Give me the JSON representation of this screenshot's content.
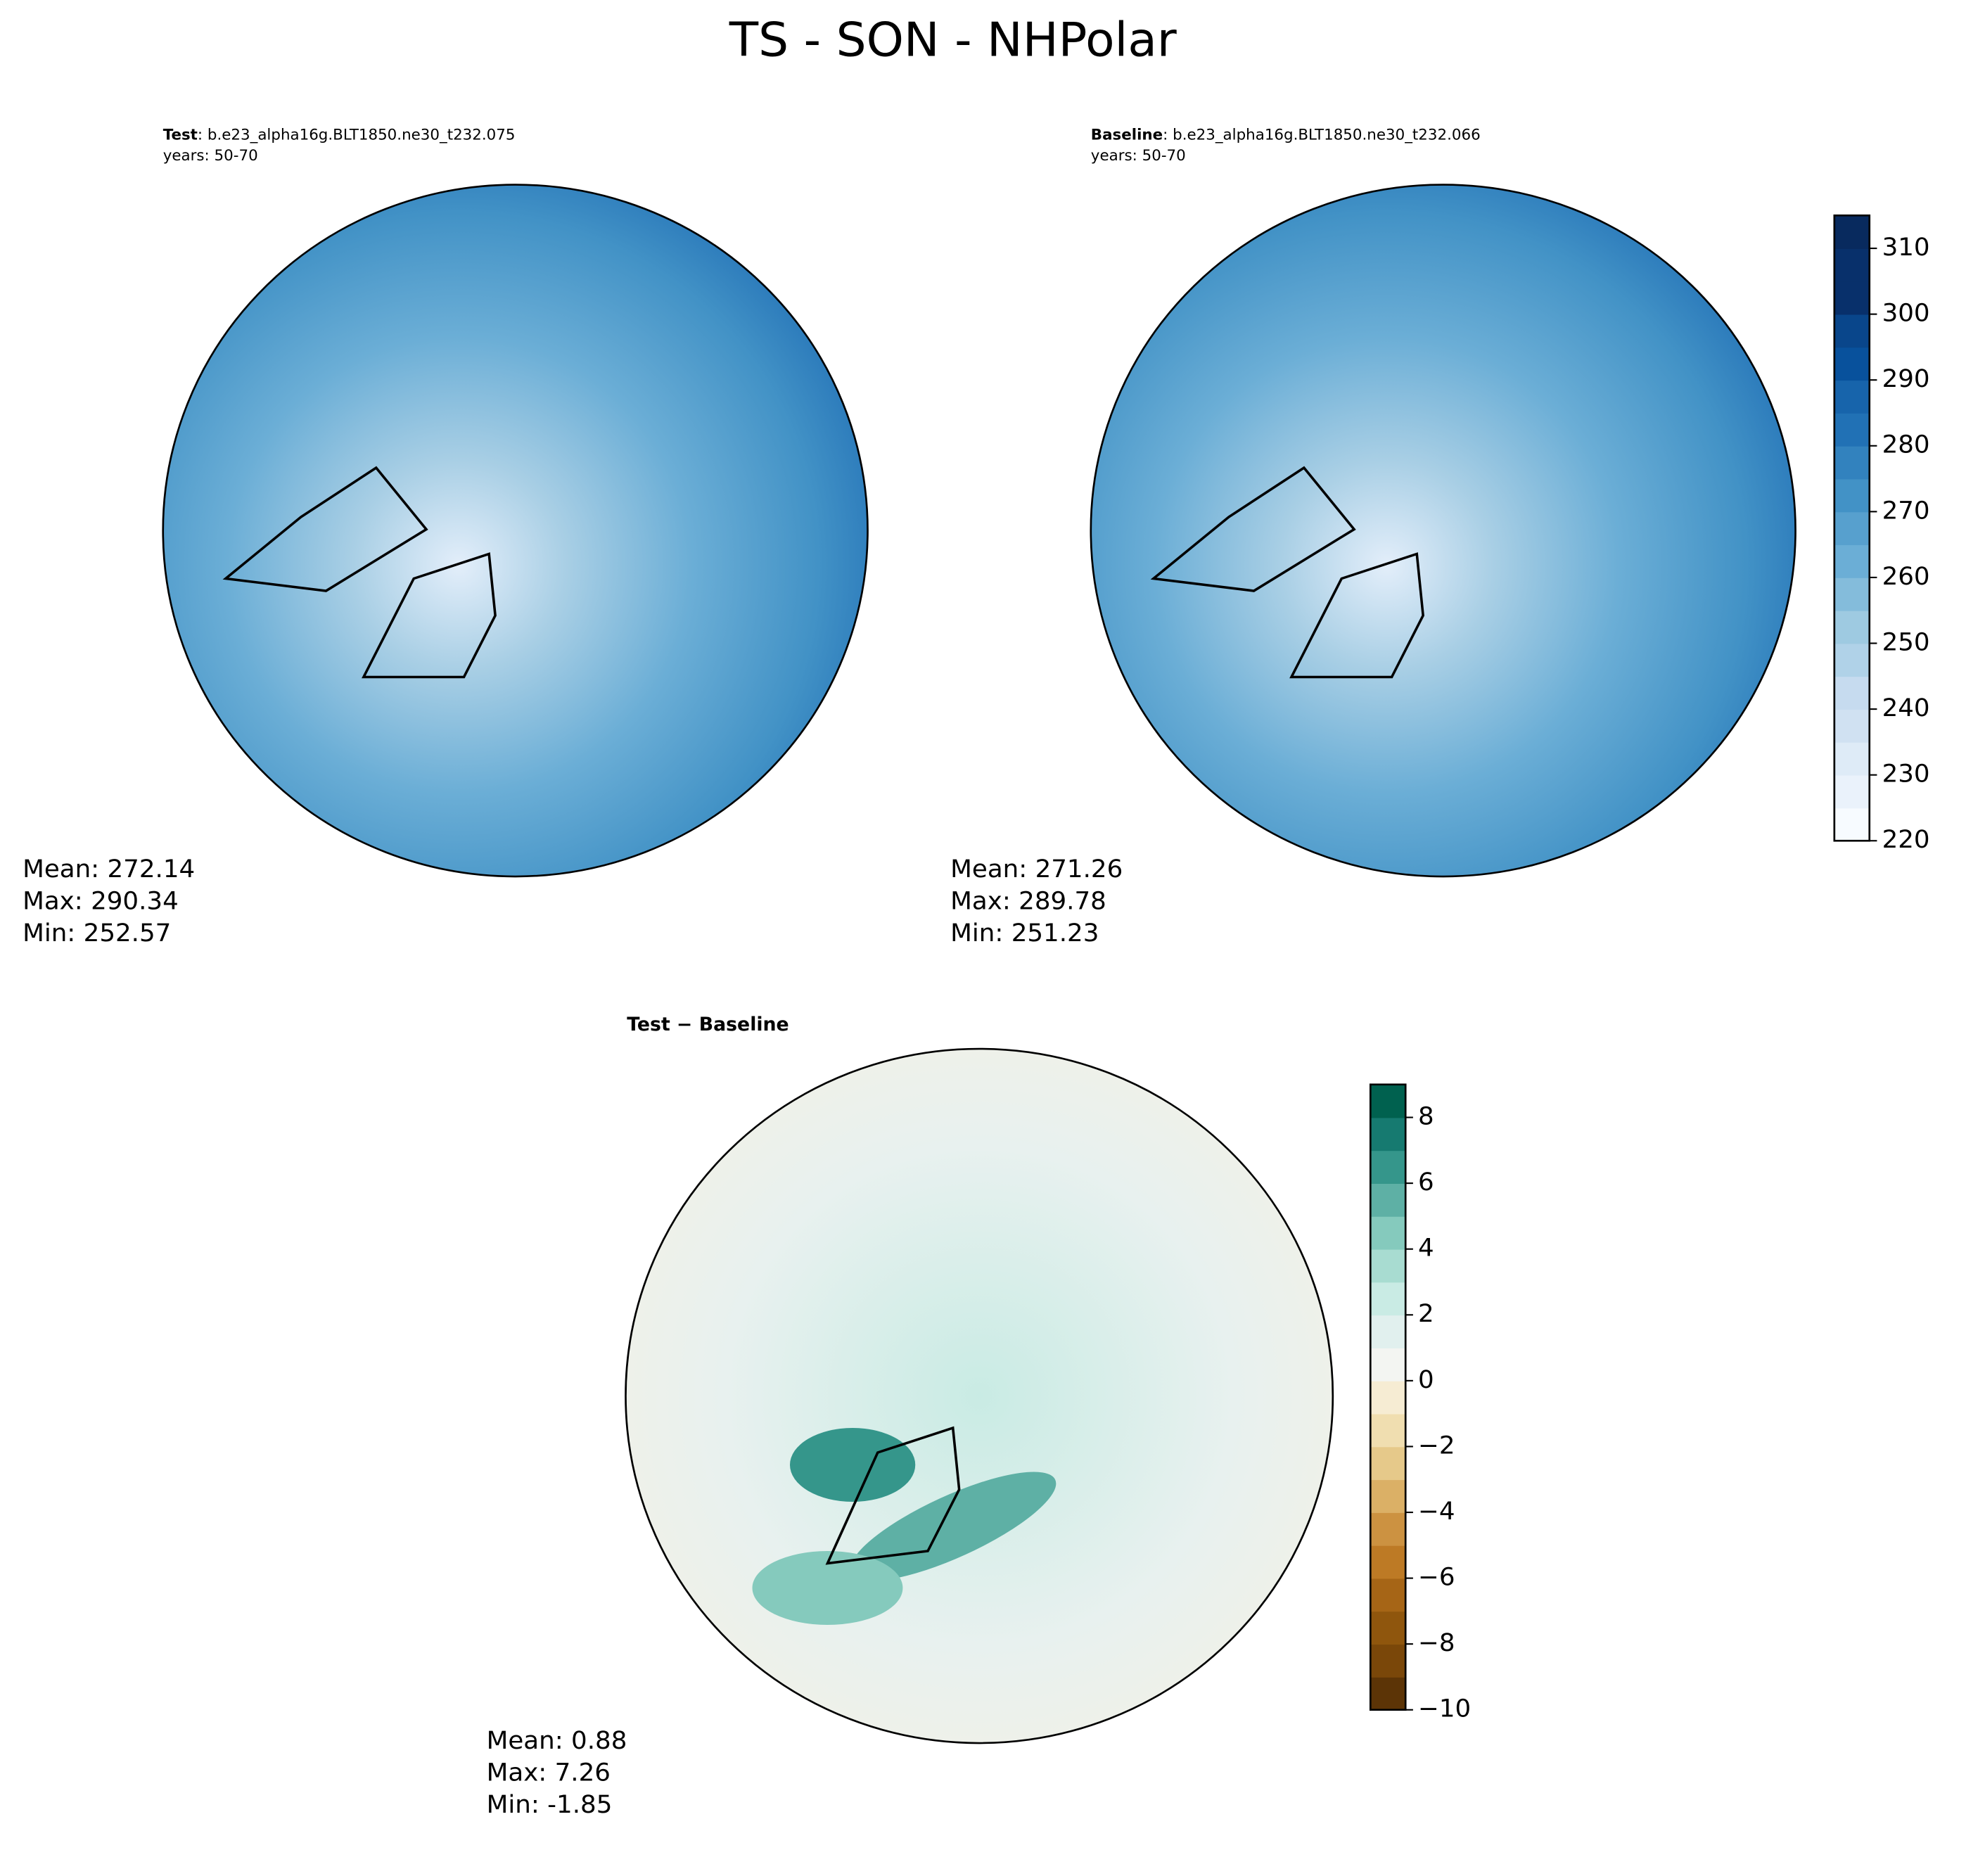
{
  "chart_data": [
    {
      "type": "map",
      "title": "TS - SON - NHPolar",
      "panel_label": "Test",
      "case": ": b.e23_alpha16g.BLT1850.ne30_t232.075",
      "years": "years: 50-70",
      "stats": [
        "Mean: 272.14",
        "Max: 290.34",
        "Min: 252.57"
      ]
    },
    {
      "type": "map",
      "panel_label": "Baseline",
      "case": ": b.e23_alpha16g.BLT1850.ne30_t232.066",
      "years": "years: 50-70",
      "stats": [
        "Mean: 271.26",
        "Max: 289.78",
        "Min: 251.23"
      ],
      "colorbar": {
        "ylim": [
          220,
          315
        ],
        "yticks": [
          220,
          230,
          240,
          250,
          260,
          270,
          280,
          290,
          300,
          310
        ],
        "colors": [
          "#f7fbff",
          "#eaf2fb",
          "#deebf7",
          "#d0e1f2",
          "#c6dbef",
          "#b0d2e8",
          "#9ecae1",
          "#84bcdb",
          "#6baed6",
          "#57a0ce",
          "#4292c6",
          "#3282be",
          "#2171b5",
          "#1764ab",
          "#08519c",
          "#09468b",
          "#08306b",
          "#08306b",
          "#082a5e"
        ]
      }
    },
    {
      "type": "map",
      "panel_label": "Test − Baseline",
      "stats": [
        "Mean:  0.88",
        "Max:  7.26",
        "Min: -1.85"
      ],
      "colorbar": {
        "ylim": [
          -10,
          9
        ],
        "yticks": [
          {
            "value": -10,
            "label": "−10"
          },
          {
            "value": -8,
            "label": "−8"
          },
          {
            "value": -6,
            "label": "−6"
          },
          {
            "value": -4,
            "label": "−4"
          },
          {
            "value": -2,
            "label": "−2"
          },
          0,
          2,
          4,
          6,
          8
        ],
        "colors": [
          "#5c3406",
          "#7a4709",
          "#8f560d",
          "#a66516",
          "#bd7a25",
          "#cc9241",
          "#dbb066",
          "#e6c98a",
          "#f0deb0",
          "#f6ecd3",
          "#f3f5f2",
          "#e1f0ee",
          "#c9ebe4",
          "#a8dcd1",
          "#85cabd",
          "#5eb0a5",
          "#35968b",
          "#167a70",
          "#00614f"
        ]
      }
    }
  ]
}
